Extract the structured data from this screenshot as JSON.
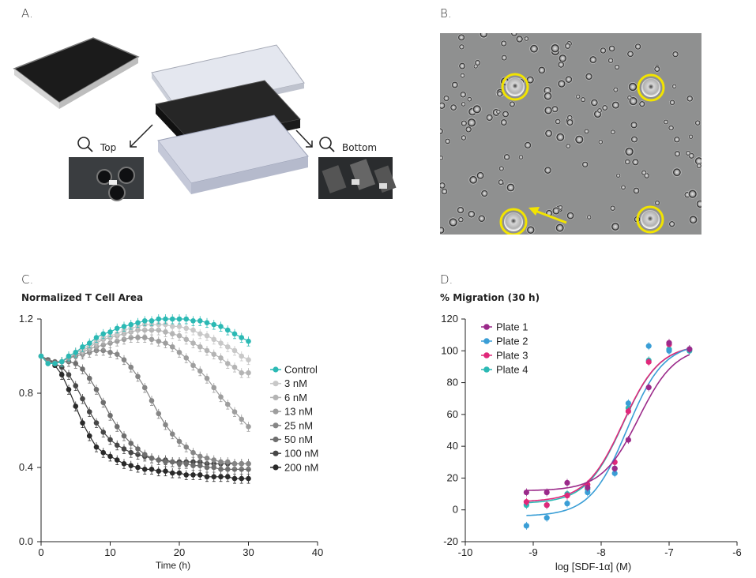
{
  "panels": {
    "a": {
      "letter": "A.",
      "top_label": "Top",
      "bottom_label": "Bottom"
    },
    "b": {
      "letter": "B."
    },
    "c": {
      "letter": "C."
    },
    "d": {
      "letter": "D."
    }
  },
  "colors": {
    "teal": "#2bb9b4",
    "plate1": "#9b2a8a",
    "plate2": "#3a9ed6",
    "plate3": "#e0287a",
    "plate4": "#2bb9b4",
    "cell_yellow": "#f2e400"
  },
  "chart_data": [
    {
      "id": "C",
      "type": "line",
      "title": "Normalized T Cell Area",
      "xlabel": "Time (h)",
      "ylabel": "",
      "xlim": [
        0,
        40
      ],
      "ylim": [
        0.0,
        1.2
      ],
      "xticks": [
        "0",
        "10",
        "20",
        "30",
        "40"
      ],
      "yticks": [
        "0.0",
        "0.4",
        "0.8",
        "1.2"
      ],
      "x": [
        0,
        1,
        2,
        3,
        4,
        5,
        6,
        7,
        8,
        9,
        10,
        11,
        12,
        13,
        14,
        15,
        16,
        17,
        18,
        19,
        20,
        21,
        22,
        23,
        24,
        25,
        26,
        27,
        28,
        29,
        30
      ],
      "legend_position": "right",
      "series": [
        {
          "name": "Control",
          "color": "#2bb9b4",
          "values": [
            1.0,
            0.96,
            0.96,
            0.97,
            1.0,
            1.02,
            1.05,
            1.07,
            1.1,
            1.12,
            1.13,
            1.15,
            1.16,
            1.17,
            1.18,
            1.19,
            1.19,
            1.2,
            1.2,
            1.2,
            1.2,
            1.2,
            1.19,
            1.19,
            1.18,
            1.17,
            1.16,
            1.14,
            1.12,
            1.1,
            1.08
          ]
        },
        {
          "name": "3 nM",
          "color": "#c8c8c8",
          "values": [
            1.0,
            0.96,
            0.96,
            0.97,
            1.0,
            1.02,
            1.04,
            1.06,
            1.08,
            1.1,
            1.11,
            1.12,
            1.14,
            1.15,
            1.16,
            1.17,
            1.17,
            1.17,
            1.17,
            1.16,
            1.16,
            1.15,
            1.14,
            1.12,
            1.11,
            1.09,
            1.07,
            1.05,
            1.03,
            1.0,
            0.98
          ]
        },
        {
          "name": "6 nM",
          "color": "#b4b4b4",
          "values": [
            1.0,
            0.96,
            0.96,
            0.97,
            1.0,
            1.02,
            1.03,
            1.05,
            1.07,
            1.09,
            1.1,
            1.11,
            1.12,
            1.13,
            1.14,
            1.14,
            1.14,
            1.14,
            1.13,
            1.12,
            1.11,
            1.09,
            1.07,
            1.05,
            1.03,
            1.01,
            0.99,
            0.96,
            0.94,
            0.91,
            0.91
          ]
        },
        {
          "name": "13 nM",
          "color": "#9e9e9e",
          "values": [
            1.0,
            0.96,
            0.96,
            0.97,
            0.99,
            1.01,
            1.02,
            1.04,
            1.05,
            1.06,
            1.07,
            1.08,
            1.09,
            1.1,
            1.1,
            1.1,
            1.09,
            1.08,
            1.07,
            1.05,
            1.02,
            0.99,
            0.95,
            0.92,
            0.88,
            0.83,
            0.78,
            0.74,
            0.7,
            0.66,
            0.62
          ]
        },
        {
          "name": "25 nM",
          "color": "#868686",
          "values": [
            1.0,
            0.97,
            0.96,
            0.97,
            0.99,
            1.0,
            1.01,
            1.02,
            1.03,
            1.03,
            1.02,
            1.01,
            0.98,
            0.94,
            0.89,
            0.83,
            0.76,
            0.69,
            0.63,
            0.58,
            0.54,
            0.51,
            0.48,
            0.46,
            0.45,
            0.44,
            0.43,
            0.43,
            0.42,
            0.42,
            0.42
          ]
        },
        {
          "name": "50 nM",
          "color": "#6e6e6e",
          "values": [
            1.0,
            0.98,
            0.97,
            0.97,
            0.97,
            0.96,
            0.93,
            0.88,
            0.82,
            0.75,
            0.68,
            0.62,
            0.57,
            0.53,
            0.5,
            0.47,
            0.45,
            0.44,
            0.43,
            0.43,
            0.42,
            0.42,
            0.41,
            0.41,
            0.4,
            0.4,
            0.39,
            0.39,
            0.39,
            0.39,
            0.39
          ]
        },
        {
          "name": "100 nM",
          "color": "#474747",
          "values": [
            1.0,
            0.98,
            0.96,
            0.94,
            0.9,
            0.84,
            0.77,
            0.7,
            0.64,
            0.59,
            0.55,
            0.52,
            0.5,
            0.48,
            0.47,
            0.46,
            0.45,
            0.44,
            0.44,
            0.43,
            0.43,
            0.43,
            0.43,
            0.43,
            0.42,
            0.42,
            0.42,
            0.42,
            0.42,
            0.42,
            0.42
          ]
        },
        {
          "name": "200 nM",
          "color": "#2a2a2a",
          "values": [
            1.0,
            0.98,
            0.95,
            0.9,
            0.82,
            0.73,
            0.64,
            0.57,
            0.51,
            0.48,
            0.46,
            0.44,
            0.42,
            0.41,
            0.4,
            0.39,
            0.39,
            0.38,
            0.38,
            0.37,
            0.37,
            0.36,
            0.36,
            0.36,
            0.35,
            0.35,
            0.35,
            0.35,
            0.34,
            0.34,
            0.34
          ]
        }
      ]
    },
    {
      "id": "D",
      "type": "scatter",
      "title": "% Migration (30 h)",
      "xlabel": "log [SDF-1α] (M)",
      "ylabel": "",
      "xlim": [
        -10,
        -6
      ],
      "ylim": [
        -20,
        120
      ],
      "xticks": [
        "-10",
        "-9",
        "-8",
        "-7",
        "-6"
      ],
      "yticks": [
        "-20",
        "0",
        "20",
        "40",
        "60",
        "80",
        "100",
        "120"
      ],
      "x": [
        -9.1,
        -8.8,
        -8.5,
        -8.2,
        -7.8,
        -7.6,
        -7.3,
        -7.0,
        -6.7
      ],
      "legend_position": "top-left",
      "series": [
        {
          "name": "Plate 1",
          "color": "#9b2a8a",
          "values": [
            11,
            11,
            17,
            14,
            26,
            44,
            77,
            105,
            101
          ],
          "fit": {
            "bottom": 12,
            "top": 103,
            "logEC50": -7.45,
            "hill": 1.6
          }
        },
        {
          "name": "Plate 2",
          "color": "#3a9ed6",
          "values": [
            -10,
            -5,
            4,
            11,
            23,
            67,
            103,
            100,
            101
          ],
          "fit": {
            "bottom": -4,
            "top": 105,
            "logEC50": -7.62,
            "hill": 1.6
          }
        },
        {
          "name": "Plate 3",
          "color": "#e0287a",
          "values": [
            5,
            3,
            9,
            16,
            30,
            62,
            93,
            104,
            101
          ],
          "fit": {
            "bottom": 5,
            "top": 104,
            "logEC50": -7.68,
            "hill": 1.6
          }
        },
        {
          "name": "Plate 4",
          "color": "#2bb9b4",
          "values": [
            3,
            3,
            10,
            13,
            26,
            64,
            94,
            101,
            100
          ],
          "fit": {
            "bottom": 4,
            "top": 104,
            "logEC50": -7.68,
            "hill": 1.6
          }
        }
      ]
    }
  ]
}
